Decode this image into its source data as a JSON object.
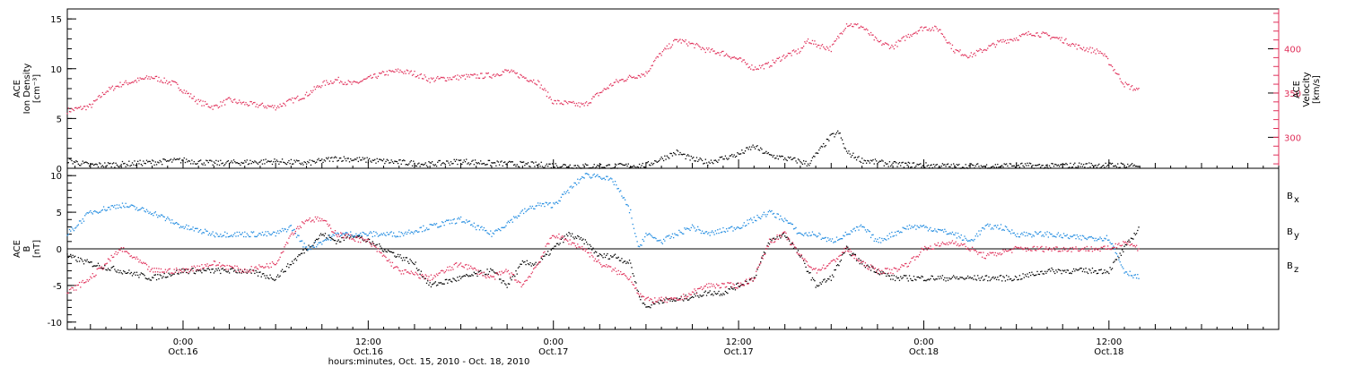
{
  "figure": {
    "xaxis_title": "hours:minutes, Oct. 15, 2010 - Oct. 18, 2010",
    "x_ticks": [
      {
        "hour": 24,
        "time": "0:00",
        "date": "Oct.16"
      },
      {
        "hour": 36,
        "time": "12:00",
        "date": "Oct.16"
      },
      {
        "hour": 48,
        "time": "0:00",
        "date": "Oct.17"
      },
      {
        "hour": 60,
        "time": "12:00",
        "date": "Oct.17"
      },
      {
        "hour": 72,
        "time": "0:00",
        "date": "Oct.18"
      },
      {
        "hour": 84,
        "time": "12:00",
        "date": "Oct.18"
      }
    ],
    "x_range_hours_from_oct15_0000": [
      16.5,
      95
    ]
  },
  "chart_data": [
    {
      "type": "scatter",
      "panel": "plasma",
      "ylabel_lines": [
        "ACE",
        "Ion Density",
        "[cm⁻³]"
      ],
      "ylim": [
        0,
        16
      ],
      "y_ticks": [
        0,
        5,
        10,
        15
      ],
      "y2label_lines": [
        "ACE",
        "Velocity",
        "[km/s]"
      ],
      "y2lim": [
        265,
        445
      ],
      "y2_ticks": [
        300,
        350,
        400
      ],
      "series": [
        {
          "color": "#e0305a",
          "axis": "right",
          "x_hours": [
            16.5,
            18,
            19,
            20,
            22,
            23.5,
            25,
            26,
            27,
            28,
            30,
            32,
            33,
            34,
            35,
            37,
            38,
            39,
            40,
            42,
            44,
            45,
            47,
            48,
            50,
            51,
            52,
            53,
            54,
            54.5,
            55,
            56,
            57,
            58,
            59,
            60,
            61,
            62,
            63,
            64,
            64.5,
            65,
            66,
            67,
            68,
            69,
            70,
            71,
            72,
            73,
            74,
            75,
            76,
            77,
            78,
            79,
            80,
            81,
            82,
            83,
            83.5,
            84,
            85,
            86
          ],
          "values": [
            330,
            335,
            352,
            360,
            368,
            360,
            340,
            334,
            342,
            338,
            334,
            348,
            360,
            365,
            360,
            372,
            375,
            372,
            365,
            368,
            370,
            375,
            362,
            340,
            336,
            350,
            362,
            368,
            372,
            385,
            395,
            410,
            405,
            398,
            395,
            388,
            378,
            382,
            392,
            398,
            410,
            405,
            400,
            428,
            425,
            408,
            402,
            415,
            424,
            422,
            398,
            392,
            400,
            408,
            412,
            418,
            415,
            410,
            402,
            398,
            396,
            385,
            360,
            352
          ]
        },
        {
          "color": "#000000",
          "axis": "left",
          "x_hours": [
            16.5,
            18,
            20,
            22,
            24,
            26,
            28,
            30,
            32,
            34,
            36,
            38,
            40,
            42,
            44,
            46,
            48,
            50,
            52,
            54,
            56,
            57,
            58,
            60,
            61,
            62,
            64,
            64.5,
            65,
            66,
            66.5,
            67,
            68,
            70,
            72,
            74,
            76,
            78,
            80,
            82,
            84,
            86
          ],
          "values": [
            0.8,
            0.3,
            0.4,
            0.6,
            0.8,
            0.5,
            0.6,
            0.7,
            0.5,
            1.0,
            0.8,
            0.6,
            0.4,
            0.7,
            0.5,
            0.4,
            0.3,
            0.2,
            0.2,
            0.3,
            1.6,
            0.9,
            0.6,
            1.4,
            2.2,
            1.3,
            0.7,
            0.4,
            1.3,
            3.2,
            3.6,
            1.6,
            0.8,
            0.4,
            0.3,
            0.2,
            0.2,
            0.3,
            0.2,
            0.3,
            0.3,
            0.3
          ]
        }
      ]
    },
    {
      "type": "scatter",
      "panel": "magnetic",
      "ylabel_lines": [
        "ACE",
        "B",
        "[nT]"
      ],
      "ylim": [
        -11,
        11
      ],
      "y_ticks": [
        -10,
        -5,
        0,
        5,
        10
      ],
      "legend": [
        {
          "label": "B",
          "sub": "x",
          "color": "#000000"
        },
        {
          "label": "B",
          "sub": "y",
          "color": "#1e8ae0"
        },
        {
          "label": "B",
          "sub": "z",
          "color": "#e0305a"
        }
      ],
      "series": [
        {
          "color": "#000000",
          "x_hours": [
            16.5,
            18,
            20,
            22,
            24,
            26,
            28,
            30,
            31,
            32,
            33,
            34,
            35,
            36,
            38,
            39,
            40,
            42,
            44,
            45,
            46,
            47,
            48,
            49,
            50,
            51,
            52,
            53,
            53.5,
            54,
            55,
            56,
            58,
            59,
            60,
            61,
            62,
            63,
            64,
            65,
            66,
            67,
            68,
            69,
            70,
            71,
            72,
            74,
            76,
            78,
            80,
            82,
            84,
            86
          ],
          "values": [
            -1,
            -2,
            -3,
            -4,
            -3,
            -3,
            -3,
            -4,
            -2,
            0,
            2,
            1,
            2,
            1,
            -1,
            -2,
            -5,
            -4,
            -3,
            -5,
            -2,
            -2,
            0,
            2,
            1,
            -1,
            -1,
            -2,
            -6,
            -8,
            -7,
            -7,
            -6,
            -6,
            -5,
            -4,
            1,
            2,
            -1,
            -5,
            -4,
            0,
            -2,
            -3,
            -4,
            -4,
            -4,
            -4,
            -4,
            -4,
            -3,
            -3,
            -3,
            3
          ]
        },
        {
          "color": "#1e8ae0",
          "x_hours": [
            16.5,
            18,
            20,
            22,
            24,
            26,
            28,
            30,
            31,
            32,
            34,
            36,
            38,
            40,
            42,
            44,
            46,
            47,
            48,
            49,
            50,
            51,
            52,
            53,
            53.5,
            54,
            55,
            56,
            57,
            58,
            60,
            61,
            62,
            63,
            64,
            65,
            66,
            67,
            68,
            69,
            70,
            71,
            72,
            74,
            75,
            76,
            77,
            78,
            80,
            82,
            84,
            85,
            86
          ],
          "values": [
            2,
            5,
            6,
            5,
            3,
            2,
            2,
            2,
            3,
            0,
            2,
            2,
            2,
            3,
            4,
            2,
            5,
            6,
            6,
            8,
            10,
            10,
            9,
            5,
            0,
            2,
            1,
            2,
            3,
            2,
            3,
            4,
            5,
            4,
            2,
            2,
            1,
            2,
            3,
            1,
            2,
            3,
            3,
            2,
            1,
            3,
            3,
            2,
            2,
            1.5,
            1.5,
            -3,
            -4
          ]
        },
        {
          "color": "#e0305a",
          "x_hours": [
            16.5,
            18,
            20,
            22,
            24,
            26,
            28,
            30,
            31,
            32,
            33,
            34,
            36,
            38,
            40,
            42,
            44,
            45,
            46,
            47,
            48,
            49,
            50,
            51,
            52,
            53,
            53.5,
            54,
            55,
            56,
            57,
            58,
            60,
            61,
            62,
            63,
            64,
            65,
            66,
            67,
            68,
            69,
            70,
            71,
            72,
            74,
            76,
            78,
            80,
            82,
            84,
            85,
            86
          ],
          "values": [
            -6,
            -4,
            0,
            -3,
            -3,
            -2,
            -3,
            -2,
            2,
            4,
            4,
            2,
            1,
            -3,
            -4,
            -2,
            -4,
            -3,
            -5,
            -2,
            2,
            1,
            0,
            -2,
            -3,
            -4,
            -6,
            -7,
            -7,
            -7,
            -6,
            -5,
            -5,
            -4,
            1,
            2,
            -1,
            -3,
            -2,
            0,
            -2,
            -3,
            -3,
            -2,
            0,
            1,
            -1,
            0,
            0,
            0,
            0,
            1,
            0
          ]
        }
      ]
    }
  ]
}
